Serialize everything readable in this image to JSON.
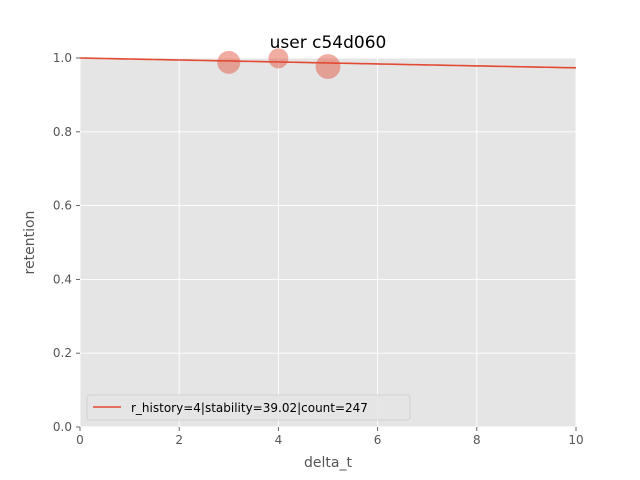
{
  "chart_data": {
    "type": "scatter",
    "title": "user c54d060",
    "xlabel": "delta_t",
    "ylabel": "retention",
    "xlim": [
      0,
      10
    ],
    "ylim": [
      0,
      1
    ],
    "x_ticks": [
      "0",
      "2",
      "4",
      "6",
      "8",
      "10"
    ],
    "y_ticks": [
      "0.0",
      "0.2",
      "0.4",
      "0.6",
      "0.8",
      "1.0"
    ],
    "grid": true,
    "legend_position": "lower-left",
    "colors": {
      "accent": "#E24A33",
      "background": "#E5E5E5",
      "grid": "#FFFFFF"
    },
    "points": [
      {
        "x": 3,
        "y": 0.988,
        "count": 120
      },
      {
        "x": 4,
        "y": 0.999,
        "count": 90
      },
      {
        "x": 5,
        "y": 0.977,
        "count": 140
      }
    ],
    "curve": {
      "name": "r_history=4|stability=39.02|count=247",
      "stability": 39.02
    }
  }
}
